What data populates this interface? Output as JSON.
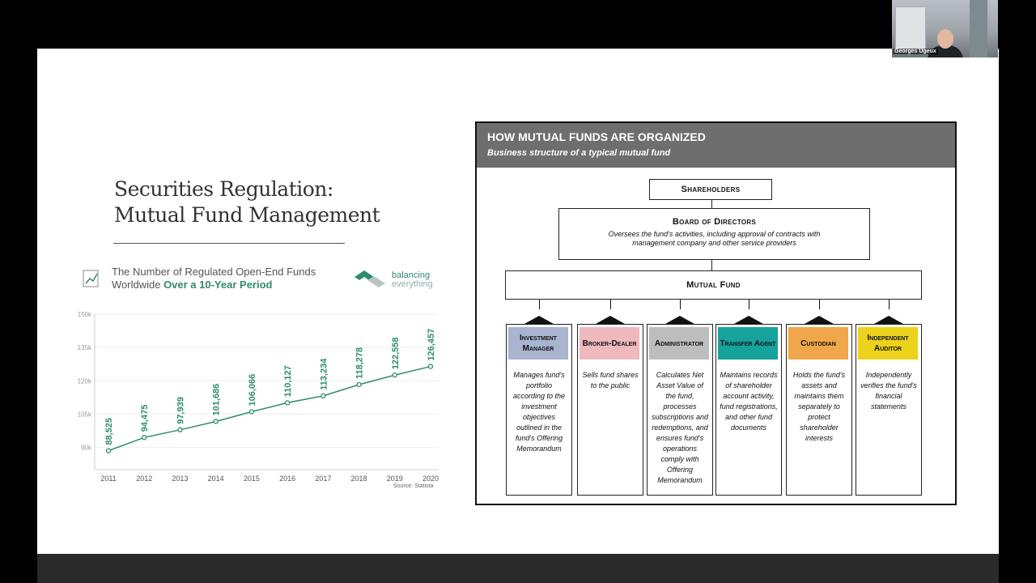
{
  "video": {
    "participant_name": "Georges Ugeux"
  },
  "slide": {
    "title_line1": "Securities Regulation:",
    "title_line2": "Mutual Fund Management",
    "chart_heading_line1": "The Number of Regulated Open-End Funds",
    "chart_heading_line2_plain": "Worldwide ",
    "chart_heading_line2_accent": "Over a 10-Year Period",
    "logo_line1": "balancing",
    "logo_line2": "everything",
    "source": "Source: Statista"
  },
  "chart_data": {
    "type": "line",
    "x": [
      "2011",
      "2012",
      "2013",
      "2014",
      "2015",
      "2016",
      "2017",
      "2018",
      "2019",
      "2020"
    ],
    "values": [
      88525,
      94475,
      97939,
      101686,
      106066,
      110127,
      113234,
      118278,
      122558,
      126457
    ],
    "value_labels": [
      "88,525",
      "94,475",
      "97,939",
      "101,686",
      "106,066",
      "110,127",
      "113,234",
      "118,278",
      "122,558",
      "126,457"
    ],
    "y_ticks": [
      90000,
      105000,
      120000,
      135000,
      150000
    ],
    "y_tick_labels": [
      "90k",
      "105k",
      "120k",
      "135k",
      "150k"
    ],
    "ylim": [
      80000,
      150000
    ],
    "color": "#2e8b6f",
    "grid": true
  },
  "org": {
    "title": "HOW MUTUAL FUNDS ARE ORGANIZED",
    "subtitle": "Business structure of a typical mutual fund",
    "shareholders": "Shareholders",
    "board_title": "Board of Directors",
    "board_desc_line1": "Oversees the fund's activities, including approval of contracts with",
    "board_desc_line2": "management company and other service providers",
    "mutual_fund": "Mutual Fund",
    "providers": [
      {
        "title": "Investment Manager",
        "color": "#a8b4d0",
        "desc": "Manages fund's portfolio according to the investment objectives outlined in the fund's Offering Memorandum"
      },
      {
        "title": "Broker-Dealer",
        "color": "#efb9bd",
        "desc": "Sells fund shares to the public"
      },
      {
        "title": "Administrator",
        "color": "#bdbdbd",
        "desc": "Calculates Net Asset Value of the fund, processes subscriptions and redemptions, and ensures fund's operations comply with Offering Memorandum"
      },
      {
        "title": "Transfer Agent",
        "color": "#16a39b",
        "desc": "Maintains records of shareholder account activity, fund registrations, and other fund documents"
      },
      {
        "title": "Custodian",
        "color": "#f0a64a",
        "desc": "Holds the fund's assets and maintains them separately to protect shareholder interests"
      },
      {
        "title": "Independent Auditor",
        "color": "#ecd21a",
        "desc": "Independently verifies the fund's financial statements"
      }
    ]
  }
}
